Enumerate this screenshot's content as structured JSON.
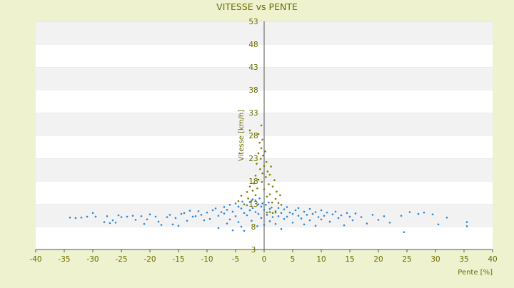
{
  "chart_data": {
    "type": "scatter",
    "title": "VITESSE vs PENTE",
    "xlabel": "Pente [%]",
    "ylabel": "Vitesse [km/h]",
    "xlim": [
      -40,
      40
    ],
    "ylim": [
      3,
      53
    ],
    "x_ticks": [
      -40,
      -35,
      -30,
      -25,
      -20,
      -15,
      -10,
      -5,
      0,
      5,
      10,
      15,
      20,
      25,
      30,
      35,
      40
    ],
    "y_ticks": [
      3,
      8,
      13,
      18,
      23,
      28,
      33,
      38,
      43,
      48,
      53
    ],
    "grid": "horizontal alternating bands",
    "legend": "none",
    "colors": {
      "background": "#eef2cf",
      "band_light": "#ffffff",
      "band_dark": "#f2f2f2",
      "axis_text": "#6b6b00",
      "series_blue": "#2e86d9",
      "series_olive": "#7f7f00"
    },
    "series": [
      {
        "color": "#2e86d9",
        "points": [
          [
            -34,
            10
          ],
          [
            -33,
            9.9
          ],
          [
            -32,
            10
          ],
          [
            -31,
            10.2
          ],
          [
            -30,
            11
          ],
          [
            -29.5,
            10.2
          ],
          [
            -28,
            9
          ],
          [
            -27.5,
            10.3
          ],
          [
            -27,
            8.8
          ],
          [
            -26.5,
            9.4
          ],
          [
            -26,
            8.9
          ],
          [
            -25.5,
            10.5
          ],
          [
            -25,
            10.1
          ],
          [
            -24,
            10.2
          ],
          [
            -23,
            10.4
          ],
          [
            -22.5,
            9.5
          ],
          [
            -21.5,
            10.3
          ],
          [
            -21,
            8.6
          ],
          [
            -20.5,
            9.6
          ],
          [
            -20,
            10.7
          ],
          [
            -19,
            10.2
          ],
          [
            -18.5,
            9.1
          ],
          [
            -18,
            8.4
          ],
          [
            -17,
            10.1
          ],
          [
            -16.5,
            10.6
          ],
          [
            -16,
            8.5
          ],
          [
            -15.5,
            9.9
          ],
          [
            -15,
            8.2
          ],
          [
            -14.5,
            10.8
          ],
          [
            -14,
            11
          ],
          [
            -13.5,
            9.3
          ],
          [
            -13,
            11.5
          ],
          [
            -12.5,
            10.2
          ],
          [
            -12,
            10.3
          ],
          [
            -11.5,
            11.4
          ],
          [
            -11,
            10.6
          ],
          [
            -10.5,
            9.4
          ],
          [
            -10,
            11.1
          ],
          [
            -9.5,
            9.7
          ],
          [
            -9,
            11.6
          ],
          [
            -8.5,
            12
          ],
          [
            -8,
            10.4
          ],
          [
            -8,
            7.7
          ],
          [
            -7.5,
            11.2
          ],
          [
            -7,
            12.3
          ],
          [
            -7,
            10.9
          ],
          [
            -6.5,
            11.7
          ],
          [
            -6.5,
            8.7
          ],
          [
            -6,
            12.8
          ],
          [
            -6,
            9.6
          ],
          [
            -5.5,
            11.3
          ],
          [
            -5.5,
            7.2
          ],
          [
            -5,
            13.1
          ],
          [
            -5,
            10.3
          ],
          [
            -4.5,
            12.4
          ],
          [
            -4.5,
            9
          ],
          [
            -4,
            12
          ],
          [
            -4,
            8
          ],
          [
            -3.8,
            13.5
          ],
          [
            -3.5,
            11
          ],
          [
            -3.5,
            7.1
          ],
          [
            -3,
            12.7
          ],
          [
            -3,
            10.5
          ],
          [
            -2.5,
            13.4
          ],
          [
            -2.5,
            11.6
          ],
          [
            -2.2,
            9.3
          ],
          [
            -2,
            14
          ],
          [
            -2,
            12.1
          ],
          [
            -1.5,
            13.8
          ],
          [
            -1.5,
            11.2
          ],
          [
            -1.2,
            8.1
          ],
          [
            -1,
            12.9
          ],
          [
            -1,
            10.8
          ],
          [
            -0.8,
            14.2
          ],
          [
            -0.5,
            12.4
          ],
          [
            -0.5,
            9.9
          ],
          [
            -0.3,
            13.1
          ],
          [
            0,
            11.7
          ],
          [
            0,
            8.4
          ],
          [
            0.3,
            12.8
          ],
          [
            0.5,
            10.6
          ],
          [
            0.8,
            13.3
          ],
          [
            1,
            11.9
          ],
          [
            1,
            9.2
          ],
          [
            1.3,
            12.2
          ],
          [
            1.5,
            10.1
          ],
          [
            2,
            11.4
          ],
          [
            2,
            8.6
          ],
          [
            2.5,
            12.1
          ],
          [
            2.5,
            10.3
          ],
          [
            3,
            11
          ],
          [
            3,
            7.5
          ],
          [
            3.5,
            11.8
          ],
          [
            3.5,
            9.7
          ],
          [
            4,
            12.3
          ],
          [
            4,
            10.2
          ],
          [
            4.5,
            11.1
          ],
          [
            5,
            10.8
          ],
          [
            5,
            8.9
          ],
          [
            5.5,
            11.6
          ],
          [
            6,
            10.4
          ],
          [
            6,
            12.1
          ],
          [
            6.5,
            9.8
          ],
          [
            7,
            11.3
          ],
          [
            7,
            8.5
          ],
          [
            7.5,
            10.6
          ],
          [
            8,
            11.9
          ],
          [
            8,
            9.4
          ],
          [
            8.5,
            10.8
          ],
          [
            9,
            11.2
          ],
          [
            9,
            8.2
          ],
          [
            9.5,
            10.1
          ],
          [
            10,
            11.6
          ],
          [
            10,
            9.6
          ],
          [
            10.5,
            10.4
          ],
          [
            11,
            11.1
          ],
          [
            11.5,
            9.1
          ],
          [
            12,
            10.7
          ],
          [
            12.5,
            11.3
          ],
          [
            13,
            9.9
          ],
          [
            13.5,
            10.5
          ],
          [
            14,
            8.3
          ],
          [
            14.5,
            11
          ],
          [
            15,
            10.2
          ],
          [
            15.5,
            9.4
          ],
          [
            16,
            10.9
          ],
          [
            17,
            10.1
          ],
          [
            18,
            8.7
          ],
          [
            19,
            10.6
          ],
          [
            20,
            9.5
          ],
          [
            21,
            10.3
          ],
          [
            22,
            8.9
          ],
          [
            24,
            10.4
          ],
          [
            24.5,
            6.8
          ],
          [
            25.5,
            11.2
          ],
          [
            27,
            10.8
          ],
          [
            28,
            11.1
          ],
          [
            29.5,
            10.7
          ],
          [
            30.5,
            8.5
          ],
          [
            32,
            10
          ],
          [
            35.5,
            9
          ],
          [
            35.5,
            8.1
          ]
        ]
      },
      {
        "color": "#7f7f00",
        "points": [
          [
            -4.5,
            13.6
          ],
          [
            -4,
            14.8
          ],
          [
            -3.5,
            12.9
          ],
          [
            -3,
            15.6
          ],
          [
            -2.8,
            14.2
          ],
          [
            -2.5,
            16.8
          ],
          [
            -2.2,
            13.7
          ],
          [
            -2,
            15.9
          ],
          [
            -1.8,
            17.5
          ],
          [
            -1.5,
            14.9
          ],
          [
            -1.5,
            19.2
          ],
          [
            -1.3,
            21.8
          ],
          [
            -1.2,
            16.4
          ],
          [
            -1,
            24.1
          ],
          [
            -1,
            18.3
          ],
          [
            -0.8,
            26.4
          ],
          [
            -0.7,
            20.6
          ],
          [
            -0.6,
            22.9
          ],
          [
            -0.5,
            25.2
          ],
          [
            -0.4,
            17.8
          ],
          [
            -0.3,
            27.1
          ],
          [
            -0.3,
            19.7
          ],
          [
            -0.2,
            23.6
          ],
          [
            0,
            21.3
          ],
          [
            0,
            16.2
          ],
          [
            0.2,
            24.5
          ],
          [
            0.3,
            18.9
          ],
          [
            0.4,
            22.2
          ],
          [
            0.5,
            14.6
          ],
          [
            0.6,
            20.1
          ],
          [
            0.8,
            17.3
          ],
          [
            1,
            19.4
          ],
          [
            1,
            15.1
          ],
          [
            1.2,
            21.2
          ],
          [
            1.4,
            13.3
          ],
          [
            1.5,
            16.8
          ],
          [
            1.8,
            18.2
          ],
          [
            2,
            14.1
          ],
          [
            2.2,
            15.7
          ],
          [
            2.5,
            13.2
          ],
          [
            2.8,
            14.9
          ],
          [
            3,
            12.8
          ],
          [
            0.5,
            11.1
          ],
          [
            1,
            11.2
          ],
          [
            1.5,
            11
          ],
          [
            2,
            11.1
          ],
          [
            -1,
            28.3
          ],
          [
            -0.5,
            30.2
          ],
          [
            -2.5,
            29.1
          ]
        ]
      }
    ]
  }
}
